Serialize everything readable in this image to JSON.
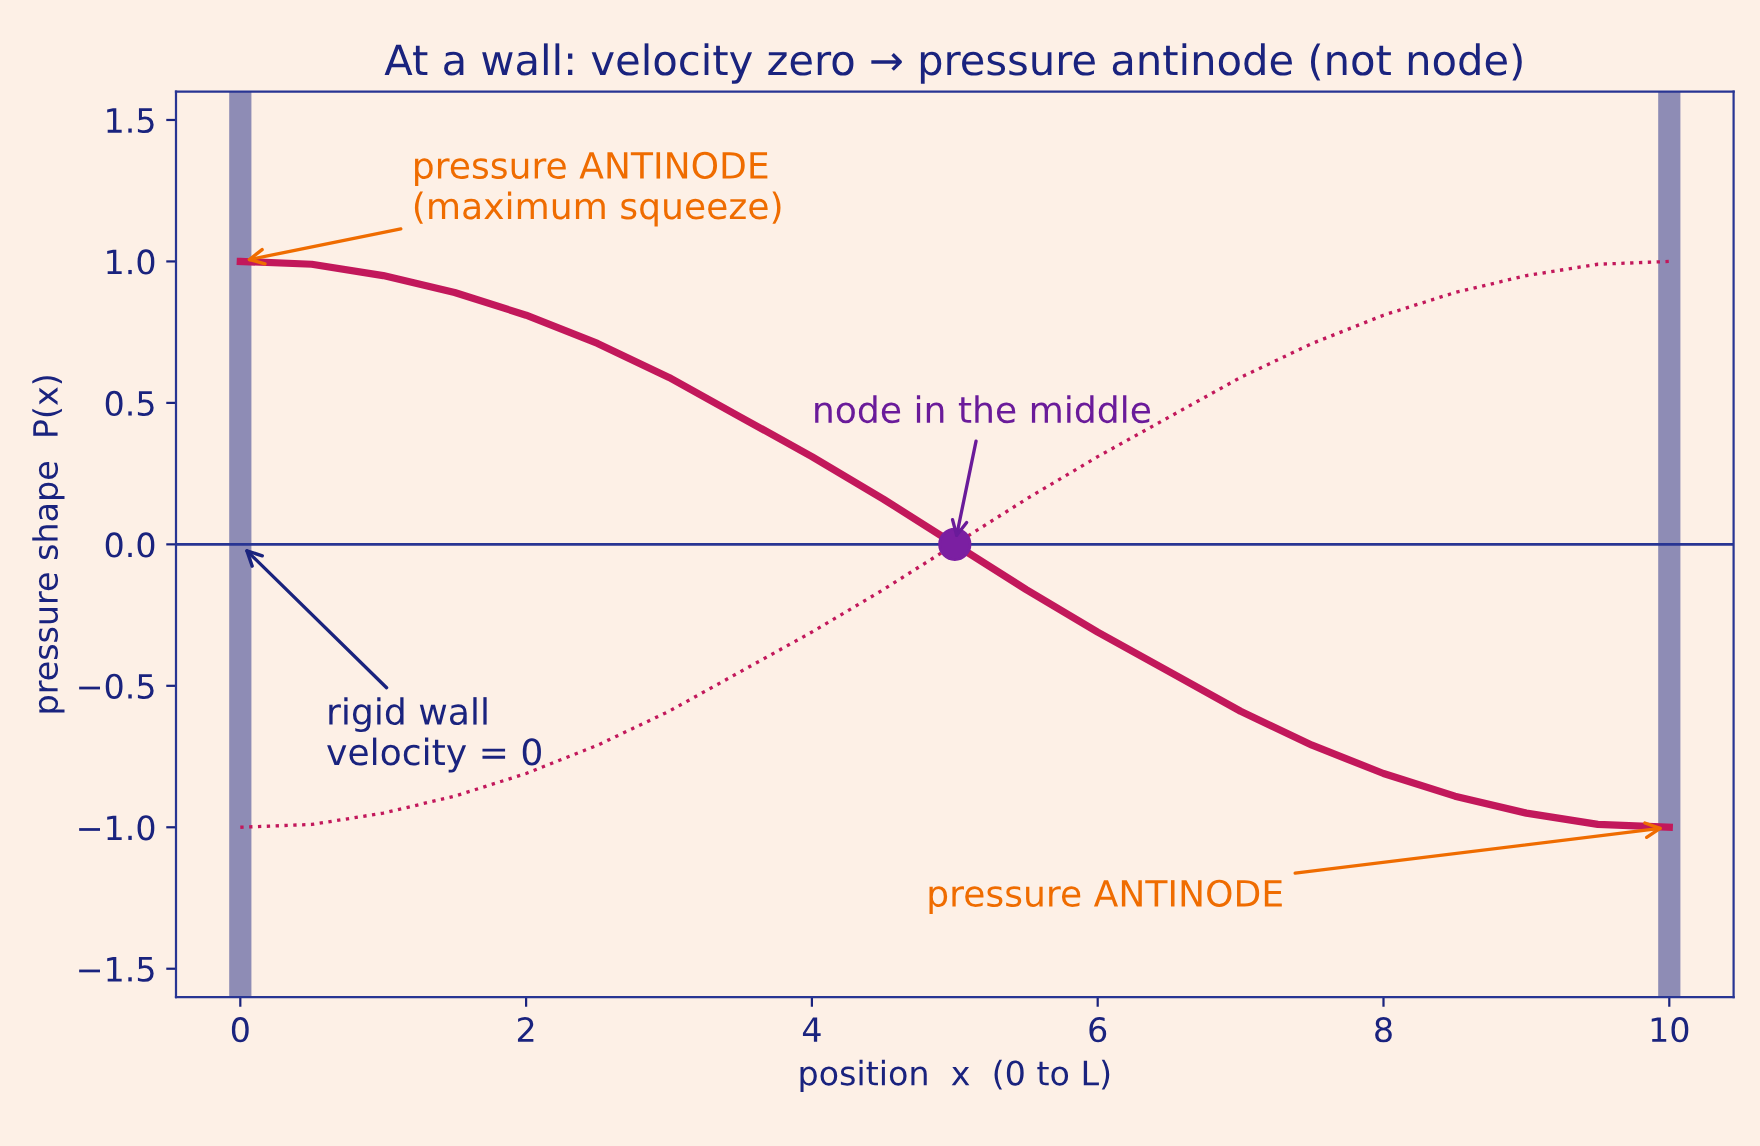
{
  "chart_data": {
    "type": "line",
    "title": "At a wall: velocity zero → pressure antinode (not node)",
    "xlabel": "position  x  (0 to L)",
    "ylabel": "pressure shape  P(x)",
    "x": [
      0,
      0.5,
      1,
      1.5,
      2,
      2.5,
      3,
      3.5,
      4,
      4.5,
      5,
      5.5,
      6,
      6.5,
      7,
      7.5,
      8,
      8.5,
      9,
      9.5,
      10
    ],
    "series": [
      {
        "color": "#c2185b",
        "line_style": "solid",
        "values": [
          1.0,
          0.99,
          0.95,
          0.89,
          0.81,
          0.71,
          0.59,
          0.45,
          0.31,
          0.16,
          0.0,
          -0.16,
          -0.31,
          -0.45,
          -0.59,
          -0.71,
          -0.81,
          -0.89,
          -0.95,
          -0.99,
          -1.0
        ]
      },
      {
        "color": "#c2185b",
        "line_style": "dotted",
        "values": [
          -1.0,
          -0.99,
          -0.95,
          -0.89,
          -0.81,
          -0.71,
          -0.59,
          -0.45,
          -0.31,
          -0.16,
          0.0,
          0.16,
          0.31,
          0.45,
          0.59,
          0.71,
          0.81,
          0.89,
          0.95,
          0.99,
          1.0
        ]
      },
      {
        "type": "scatter",
        "color": "#7b1fa2",
        "x": [
          5
        ],
        "values": [
          0
        ]
      }
    ],
    "xlim": [
      -0.45,
      10.45
    ],
    "ylim": [
      -1.6,
      1.6
    ],
    "xticks": [
      0,
      2,
      4,
      6,
      8,
      10
    ],
    "yticks": [
      {
        "value": -1.5,
        "label": "−1.5"
      },
      {
        "value": -1.0,
        "label": "−1.0"
      },
      {
        "value": -0.5,
        "label": "−0.5"
      },
      {
        "value": 0.0,
        "label": "0.0"
      },
      {
        "value": 0.5,
        "label": "0.5"
      },
      {
        "value": 1.0,
        "label": "1.0"
      },
      {
        "value": 1.5,
        "label": "1.5"
      }
    ],
    "ref_lines": [
      {
        "axis": "x",
        "value": 0,
        "color": "#8e8cb5"
      },
      {
        "axis": "x",
        "value": 10,
        "color": "#8e8cb5"
      },
      {
        "axis": "y",
        "value": 0,
        "color": "#283593"
      }
    ],
    "annotations": [
      {
        "text": "pressure ANTINODE\n(maximum squeeze)",
        "x": 0,
        "y": 1.0
      },
      {
        "text": "node in the middle",
        "x": 5,
        "y": 0
      },
      {
        "text": "rigid wall\nvelocity = 0",
        "x": 0,
        "y": 0
      },
      {
        "text": "pressure ANTINODE",
        "x": 10,
        "y": -1.0
      }
    ],
    "grid": false,
    "legend": false
  }
}
